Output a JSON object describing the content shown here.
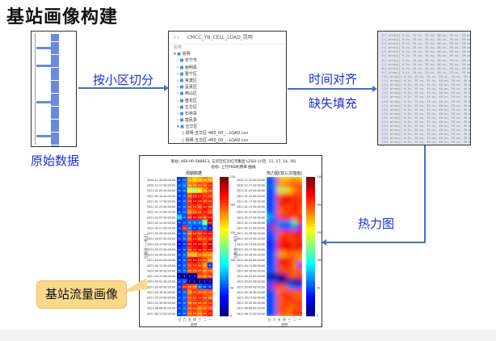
{
  "title": "基站画像构建",
  "labels": {
    "raw_data": "原始数据",
    "split": "按小区切分",
    "align": "时间对齐",
    "fill": "缺失填充",
    "heatmap": "热力图",
    "callout": "基站流量画像"
  },
  "colors": {
    "arrow": "#4472c4",
    "label": "#1a2fd0",
    "callout_bg": "#fcd88a"
  },
  "file_explorer": {
    "path": "CMCC_YN_CELL_LOAD_昆明",
    "column": "名称",
    "root": "昆明",
    "folders": [
      "安宁市",
      "嵩明县",
      "晋宁区",
      "官渡区",
      "呈贡区",
      "西山区",
      "盘龙区",
      "五华区",
      "石林县",
      "富民县",
      "五华区"
    ],
    "files": [
      "昆明-五华区-460_00_...LOAD.csv",
      "昆明-五华区-460_00_...LOAD.csv",
      "昆明-五华区-460_00_...LOAD.csv",
      "昆明-五华区-460_00_...LOAD.csv",
      "昆明-五华区-460_00_...LOAD.csv"
    ],
    "selected_file_index": 3
  },
  "chart_data": {
    "type": "heatmap",
    "title": "基站: 460-00-588813, 五华区红云红河集团 LZSO (小区: 11, 17, 14, 16)",
    "subtitle": "指标: 上行PRB利用率 曲线",
    "panels": [
      {
        "title": "周期数据"
      },
      {
        "title": "热力图(双三次插值)"
      }
    ],
    "xlabel": "星期",
    "ylabel": "日期(周一~周日)",
    "x_categories": [
      "日",
      "六",
      "五",
      "四",
      "三",
      "二",
      "一"
    ],
    "y_categories": [
      "2020-12-20 00:00:00",
      "2020-12-27 00:00:00",
      "2021-01-03 00:00:00",
      "2021-01-10 00:00:00",
      "2021-01-17 00:00:00",
      "2021-01-24 00:00:00",
      "2021-01-31 00:00:00",
      "2021-02-07 00:00:00",
      "2021-02-14 00:00:00",
      "2021-02-21 00:00:00",
      "2021-02-28 00:00:00",
      "2021-03-07 00:00:00",
      "2021-03-14 00:00:00",
      "2021-03-21 00:00:00",
      "2021-03-28 00:00:00",
      "2021-04-04 00:00:00",
      "2021-04-11 00:00:00",
      "2021-04-18 00:00:00",
      "2021-04-25 00:00:00",
      "2021-05-02 00:00:00",
      "2021-05-09 00:00:00",
      "2021-05-16 00:00:00",
      "2021-05-23 00:00:00",
      "2021-05-30 00:00:00",
      "2021-06-06 00:00:00",
      "2021-06-13 00:00:00"
    ],
    "values": [
      [
        45,
        55,
        180,
        170,
        175,
        185,
        175
      ],
      [
        50,
        60,
        185,
        190,
        200,
        195,
        210
      ],
      [
        50,
        55,
        150,
        130,
        165,
        185,
        200
      ],
      [
        45,
        50,
        200,
        210,
        215,
        205,
        205
      ],
      [
        45,
        55,
        205,
        225,
        215,
        205,
        210
      ],
      [
        45,
        55,
        205,
        210,
        200,
        215,
        205
      ],
      [
        45,
        55,
        190,
        200,
        205,
        215,
        200
      ],
      [
        80,
        50,
        205,
        220,
        210,
        200,
        215
      ],
      [
        45,
        50,
        60,
        60,
        60,
        120,
        230
      ],
      [
        45,
        210,
        60,
        45,
        50,
        60,
        35
      ],
      [
        45,
        55,
        195,
        210,
        205,
        215,
        220
      ],
      [
        45,
        55,
        200,
        215,
        200,
        205,
        210
      ],
      [
        30,
        45,
        210,
        220,
        225,
        205,
        230
      ],
      [
        40,
        50,
        205,
        215,
        220,
        210,
        220
      ],
      [
        45,
        55,
        180,
        175,
        195,
        185,
        185
      ],
      [
        45,
        55,
        215,
        225,
        210,
        200,
        185
      ],
      [
        45,
        55,
        205,
        210,
        205,
        185,
        45
      ],
      [
        50,
        55,
        200,
        200,
        205,
        190,
        200
      ],
      [
        5,
        5,
        5,
        5,
        200,
        195,
        205
      ],
      [
        45,
        50,
        5,
        5,
        5,
        5,
        5
      ],
      [
        45,
        210,
        200,
        195,
        60,
        50,
        45
      ],
      [
        45,
        55,
        190,
        205,
        200,
        195,
        200
      ],
      [
        45,
        55,
        200,
        205,
        210,
        200,
        195
      ],
      [
        45,
        55,
        195,
        200,
        205,
        200,
        210
      ],
      [
        45,
        55,
        200,
        205,
        190,
        195,
        200
      ],
      [
        45,
        55,
        195,
        200,
        190,
        205,
        215
      ]
    ],
    "vmin": 0,
    "vmax": 250,
    "colorbar_ticks": [
      0,
      50,
      100,
      150,
      200,
      250
    ],
    "colormap": "jet"
  }
}
